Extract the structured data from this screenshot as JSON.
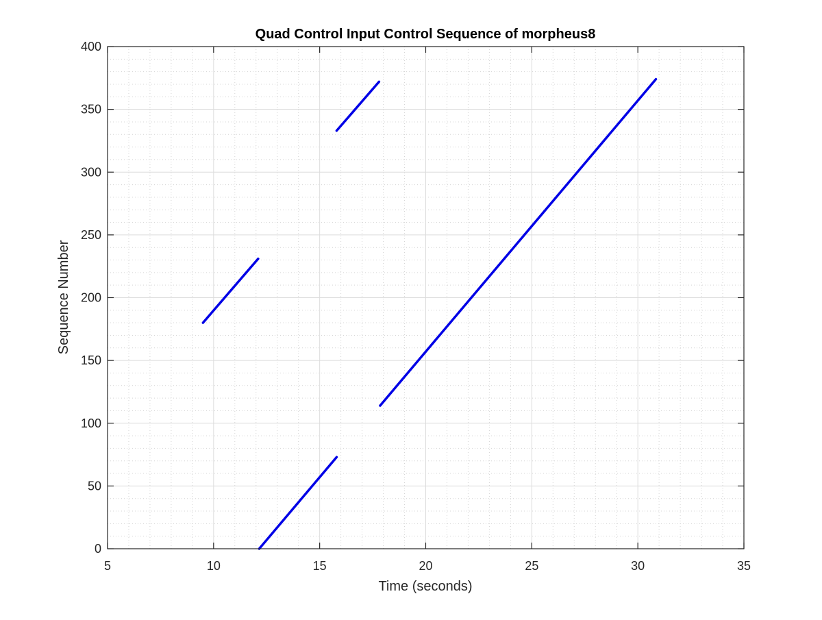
{
  "chart_data": {
    "type": "line",
    "title": "Quad Control Input Control Sequence of morpheus8",
    "xlabel": "Time (seconds)",
    "ylabel": "Sequence Number",
    "xlim": [
      5,
      35
    ],
    "ylim": [
      0,
      400
    ],
    "x_ticks": [
      5,
      10,
      15,
      20,
      25,
      30,
      35
    ],
    "y_ticks": [
      0,
      50,
      100,
      150,
      200,
      250,
      300,
      350,
      400
    ],
    "x_tick_labels": [
      "5",
      "10",
      "15",
      "20",
      "25",
      "30",
      "35"
    ],
    "y_tick_labels": [
      "0",
      "50",
      "100",
      "150",
      "200",
      "250",
      "300",
      "350",
      "400"
    ],
    "grid": true,
    "minor_grid": true,
    "line_color": "#0000e6",
    "series": [
      {
        "x": [
          9.5,
          12.1
        ],
        "y": [
          180,
          231
        ]
      },
      {
        "x": [
          15.8,
          17.8
        ],
        "y": [
          333,
          372
        ]
      },
      {
        "x": [
          17.85,
          30.85
        ],
        "y": [
          114,
          374
        ]
      },
      {
        "x": [
          12.15,
          15.8
        ],
        "y": [
          0,
          73
        ]
      }
    ]
  }
}
